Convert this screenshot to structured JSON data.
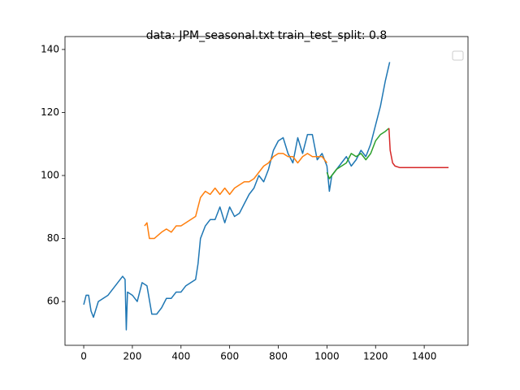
{
  "chart_data": {
    "type": "line",
    "title": "data: JPM_seasonal.txt train_test_split: 0.8",
    "xlim": [
      -77,
      1580
    ],
    "ylim": [
      46.1,
      144.1
    ],
    "xticks": [
      0,
      200,
      400,
      600,
      800,
      1000,
      1200,
      1400
    ],
    "yticks": [
      60,
      80,
      100,
      120,
      140
    ],
    "series": [
      {
        "color": "#1f77b4",
        "x": [
          0,
          10,
          20,
          30,
          40,
          60,
          80,
          100,
          120,
          140,
          160,
          170,
          175,
          180,
          200,
          220,
          240,
          260,
          280,
          300,
          320,
          340,
          360,
          380,
          400,
          420,
          440,
          460,
          470,
          480,
          500,
          520,
          540,
          560,
          580,
          600,
          620,
          640,
          660,
          680,
          700,
          720,
          740,
          760,
          780,
          800,
          820,
          840,
          860,
          880,
          900,
          920,
          940,
          960,
          980,
          1000,
          1010,
          1020,
          1040,
          1060,
          1080,
          1100,
          1120,
          1140,
          1160,
          1180,
          1200,
          1220,
          1240,
          1258
        ],
        "values": [
          59,
          62,
          62,
          57,
          55,
          60,
          61,
          62,
          64,
          66,
          68,
          67,
          51,
          63,
          62,
          60,
          66,
          65,
          56,
          56,
          58,
          61,
          61,
          63,
          63,
          65,
          66,
          67,
          72,
          80,
          84,
          86,
          86,
          90,
          85,
          90,
          87,
          88,
          91,
          94,
          96,
          100,
          98,
          102,
          108,
          111,
          112,
          107,
          104,
          112,
          107,
          113,
          113,
          105,
          107,
          103,
          95,
          100,
          102,
          104,
          106,
          103,
          105,
          108,
          106,
          110,
          116,
          122,
          130,
          136
        ]
      },
      {
        "color": "#ff7f0e",
        "x": [
          250,
          260,
          270,
          290,
          320,
          340,
          360,
          380,
          400,
          420,
          440,
          460,
          480,
          500,
          520,
          540,
          560,
          580,
          600,
          620,
          640,
          660,
          680,
          700,
          720,
          740,
          760,
          780,
          800,
          820,
          840,
          860,
          880,
          900,
          920,
          940,
          960,
          980,
          1000
        ],
        "values": [
          84,
          85,
          80,
          80,
          82,
          83,
          82,
          84,
          84,
          85,
          86,
          87,
          93,
          95,
          94,
          96,
          94,
          96,
          94,
          96,
          97,
          98,
          98,
          99,
          101,
          103,
          104,
          106,
          107,
          107,
          106,
          106,
          104,
          106,
          107,
          106,
          106,
          106,
          104
        ]
      },
      {
        "color": "#2ca02c",
        "x": [
          1000,
          1010,
          1020,
          1040,
          1060,
          1080,
          1100,
          1120,
          1140,
          1160,
          1180,
          1200,
          1220,
          1240,
          1255
        ],
        "values": [
          101,
          99,
          100,
          102,
          103,
          104,
          107,
          106,
          107,
          105,
          107,
          111,
          113,
          114,
          115
        ]
      },
      {
        "color": "#d62728",
        "x": [
          1255,
          1260,
          1270,
          1280,
          1300,
          1400,
          1500
        ],
        "values": [
          115,
          108,
          104,
          103,
          102.5,
          102.5,
          102.5
        ]
      }
    ]
  }
}
